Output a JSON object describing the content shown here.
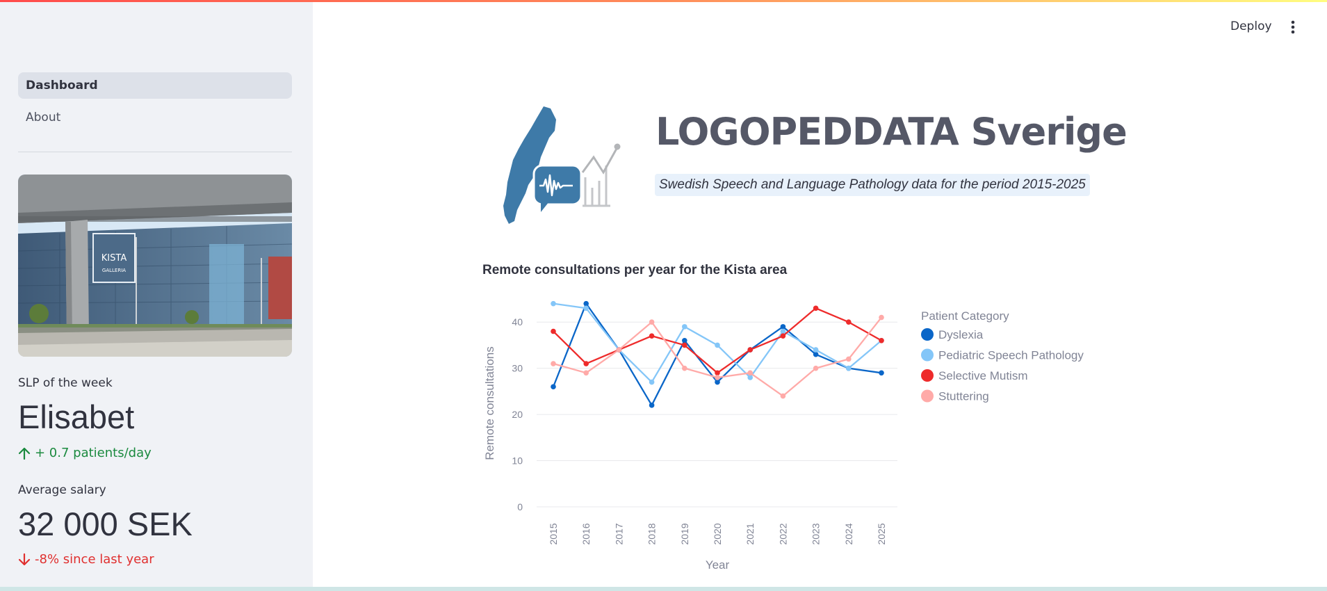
{
  "header": {
    "deploy_label": "Deploy",
    "menu_icon": "kebab-menu-icon"
  },
  "sidebar": {
    "nav": [
      {
        "label": "Dashboard",
        "active": true
      },
      {
        "label": "About",
        "active": false
      }
    ],
    "metrics": [
      {
        "label": "SLP of the week",
        "value": "Elisabet",
        "delta": "+ 0.7 patients/day",
        "direction": "up",
        "color": "#1b8a3f"
      },
      {
        "label": "Average salary",
        "value": "32 000 SEK",
        "delta": "-8% since last year",
        "direction": "down",
        "color": "#e0302f"
      }
    ],
    "photo_sign": [
      "KISTA",
      "GALLERIA"
    ]
  },
  "main": {
    "title": "LOGOPEDDATA Sverige",
    "subtitle": "Swedish Speech and Language Pathology data for the period 2015-2025",
    "chart_title": "Remote consultations per year for the Kista area"
  },
  "chart_data": {
    "type": "line",
    "title": "Remote consultations per year for the Kista area",
    "xlabel": "Year",
    "ylabel": "Remote consultations",
    "x": [
      "2015",
      "2016",
      "2017",
      "2018",
      "2019",
      "2020",
      "2021",
      "2022",
      "2023",
      "2024",
      "2025"
    ],
    "yticks": [
      0,
      10,
      20,
      30,
      40
    ],
    "ylim": [
      0,
      45
    ],
    "grid": true,
    "legend_title": "Patient Category",
    "legend_position": "right",
    "series": [
      {
        "name": "Dyslexia",
        "color": "#0a66c8",
        "values": [
          26,
          44,
          34,
          22,
          36,
          27,
          34,
          39,
          33,
          30,
          29
        ]
      },
      {
        "name": "Pediatric Speech Pathology",
        "color": "#84c6f8",
        "values": [
          44,
          43,
          34,
          27,
          39,
          35,
          28,
          38,
          34,
          30,
          36
        ]
      },
      {
        "name": "Selective Mutism",
        "color": "#ee2b2b",
        "values": [
          38,
          31,
          34,
          37,
          35,
          29,
          34,
          37,
          43,
          40,
          36
        ]
      },
      {
        "name": "Stuttering",
        "color": "#ffaaa8",
        "values": [
          31,
          29,
          34,
          40,
          30,
          28,
          29,
          24,
          30,
          32,
          41
        ]
      }
    ]
  }
}
